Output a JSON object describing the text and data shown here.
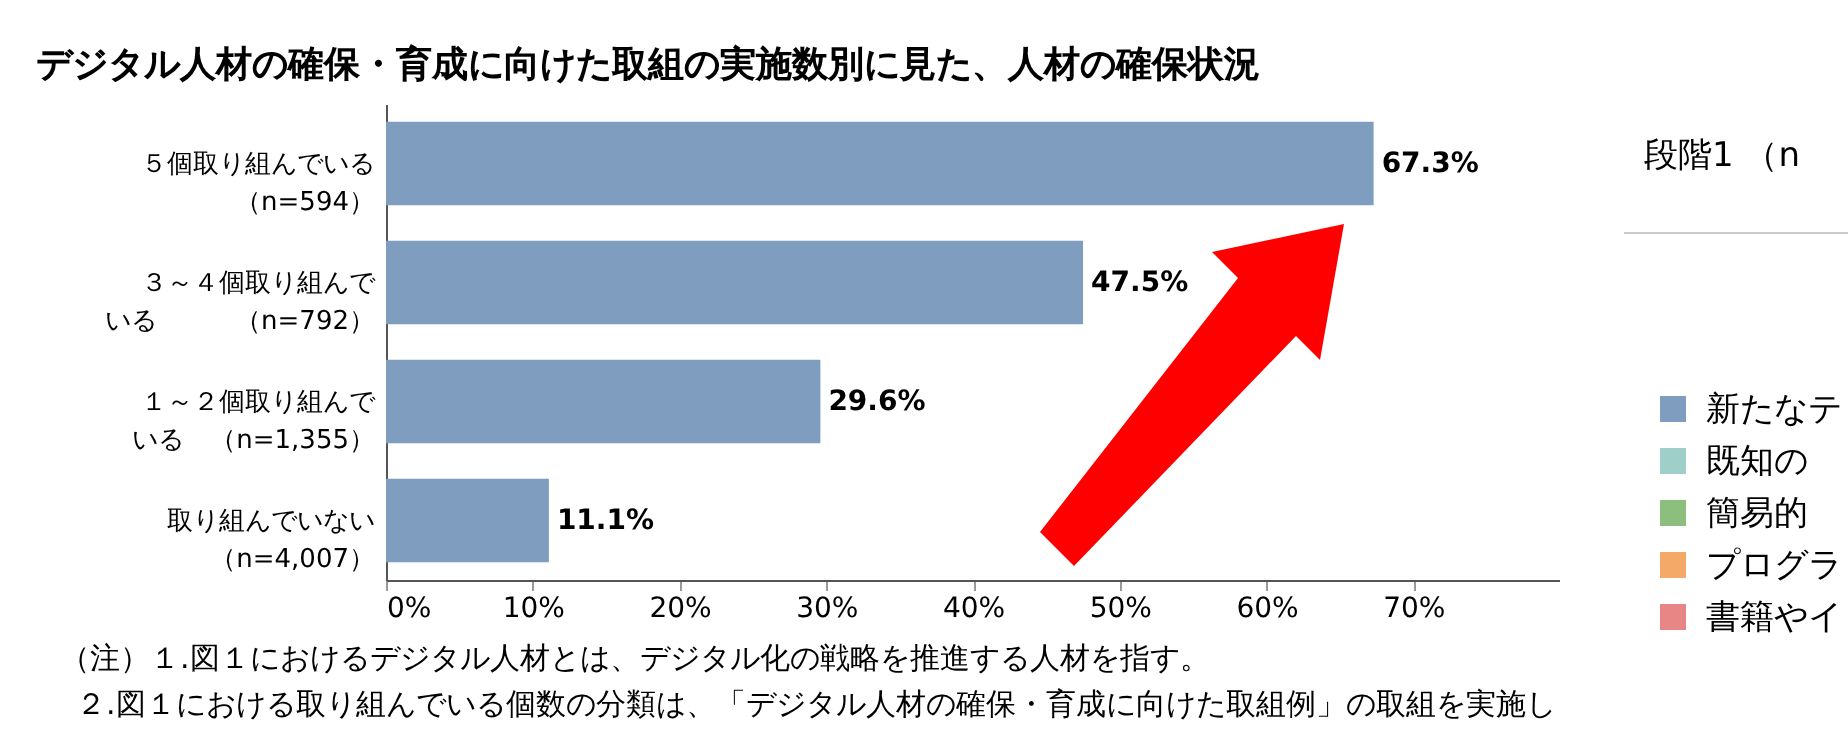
{
  "chart_data": [
    {
      "type": "bar",
      "orientation": "horizontal",
      "title": "デジタル人材の確保・育成に向けた取組の実施数別に見た、人材の確保状況",
      "categories": [
        "５個取り組んでいる（n=594）",
        "３～４個取り組んでいる　　　（n=792）",
        "１～２個取り組んでいる　（n=1,355）",
        "取り組んでいない（n=4,007）"
      ],
      "values": [
        67.3,
        47.5,
        29.6,
        11.1
      ],
      "color": "#7f9dbf",
      "value_labels": [
        "67.3%",
        "47.5%",
        "29.6%",
        "11.1%"
      ],
      "xlim": [
        0,
        80
      ],
      "xticks": [
        {
          "value": 0,
          "label": "0%"
        },
        {
          "value": 10,
          "label": "10%"
        },
        {
          "value": 20,
          "label": "20%"
        },
        {
          "value": 30,
          "label": "30%"
        },
        {
          "value": 40,
          "label": "40%"
        },
        {
          "value": 50,
          "label": "50%"
        },
        {
          "value": 60,
          "label": "60%"
        },
        {
          "value": 70,
          "label": "70%"
        }
      ],
      "grid": false,
      "legend": false,
      "annotations": [
        "（注）１.図１におけるデジタル人材とは、デジタル化の戦略を推進する人材を指す。",
        "２.図１における取り組んでいる個数の分類は、「デジタル人材の確保・育成に向けた取組例」の取組を実施し"
      ]
    },
    {
      "type": "other",
      "title": "段階1 （n",
      "legend": "right",
      "series": [
        {
          "name": "新たなテ",
          "color": "#7f9dbf"
        },
        {
          "name": "既知の",
          "color": "#9ecfc8"
        },
        {
          "name": "簡易的",
          "color": "#8cbf7e"
        },
        {
          "name": "プログラ",
          "color": "#f4a968"
        },
        {
          "name": "書籍やイ",
          "color": "#e88585"
        }
      ]
    }
  ]
}
